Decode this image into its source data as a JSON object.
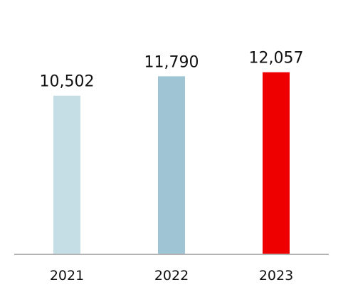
{
  "chart_data": {
    "type": "bar",
    "categories": [
      "2021",
      "2022",
      "2023"
    ],
    "values": [
      10502,
      11790,
      12057
    ],
    "value_labels": [
      "10,502",
      "11,790",
      "12,057"
    ],
    "colors": [
      "#c5dde5",
      "#9fc4d3",
      "#ee0000"
    ],
    "axis_color": "#b3b3b3",
    "title": "",
    "xlabel": "",
    "ylabel": "",
    "ylim": [
      0,
      12700
    ],
    "grid": false,
    "legend": "none"
  }
}
